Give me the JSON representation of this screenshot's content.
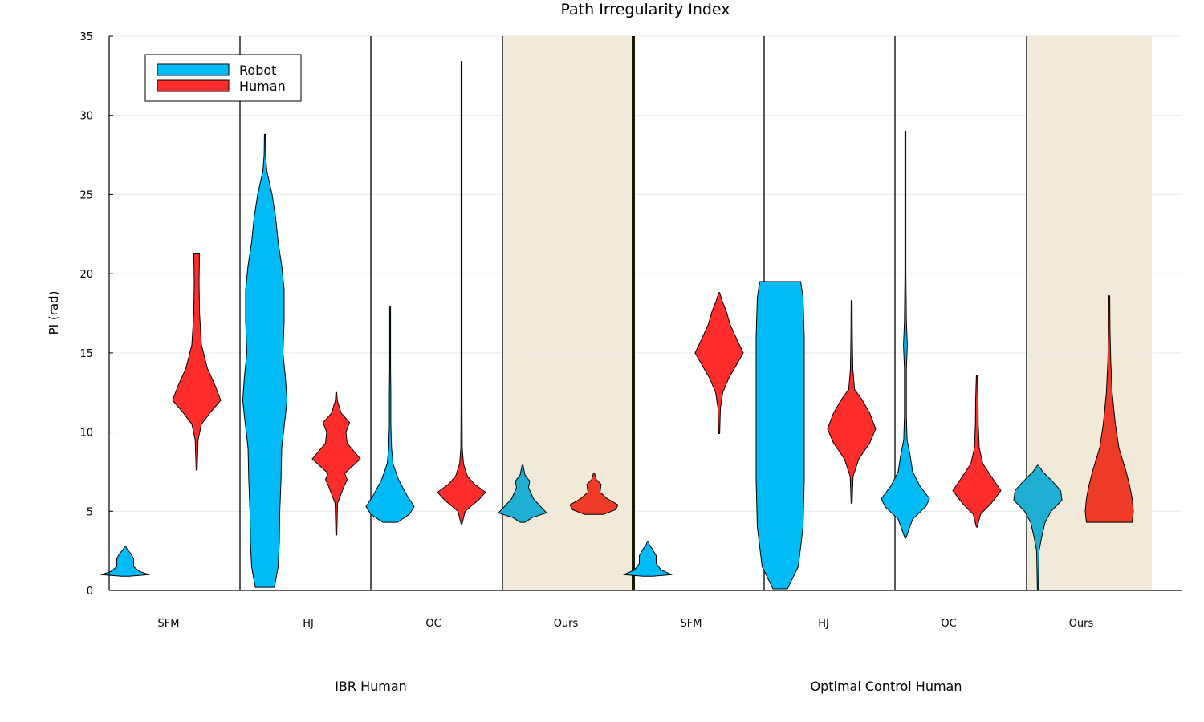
{
  "chart_data": {
    "type": "violin",
    "title": "Path Irregularity Index",
    "ylabel": "PI (rad)",
    "ylim": [
      0,
      35
    ],
    "yticks": [
      0,
      5,
      10,
      15,
      20,
      25,
      30,
      35
    ],
    "grid": true,
    "legend_position": "top-left",
    "categories": [
      "SFM",
      "HJ",
      "OC",
      "Ours",
      "SFM",
      "HJ",
      "OC",
      "Ours"
    ],
    "groups": [
      {
        "label": "IBR Human",
        "categories": [
          "SFM",
          "HJ",
          "OC",
          "Ours"
        ]
      },
      {
        "label": "Optimal Control Human",
        "categories": [
          "SFM",
          "HJ",
          "OC",
          "Ours"
        ]
      }
    ],
    "highlighted_categories": [
      3,
      7
    ],
    "series": [
      {
        "name": "Robot",
        "color": "#00bbf6",
        "highlight_color": "#1eafd2"
      },
      {
        "name": "Human",
        "color": "#ff2c2c",
        "highlight_color": "#ee3b28"
      }
    ],
    "violins": [
      {
        "category": 0,
        "series": "Robot",
        "min": 0.9,
        "max": 2.8,
        "profile": [
          [
            0.9,
            0.15
          ],
          [
            1.0,
            1.0
          ],
          [
            1.2,
            0.6
          ],
          [
            1.5,
            0.35
          ],
          [
            2.0,
            0.35
          ],
          [
            2.3,
            0.25
          ],
          [
            2.6,
            0.08
          ],
          [
            2.8,
            0.02
          ]
        ]
      },
      {
        "category": 0,
        "series": "Human",
        "min": 7.6,
        "max": 21.3,
        "profile": [
          [
            7.6,
            0.01
          ],
          [
            9.5,
            0.06
          ],
          [
            10.5,
            0.2
          ],
          [
            11.3,
            0.6
          ],
          [
            12.0,
            1.0
          ],
          [
            13.0,
            0.75
          ],
          [
            14.0,
            0.45
          ],
          [
            15.5,
            0.2
          ],
          [
            17.5,
            0.12
          ],
          [
            19.5,
            0.1
          ],
          [
            21.3,
            0.12
          ]
        ]
      },
      {
        "category": 1,
        "series": "Robot",
        "min": 0.2,
        "max": 28.8,
        "profile": [
          [
            0.2,
            0.4
          ],
          [
            1.5,
            0.55
          ],
          [
            3,
            0.6
          ],
          [
            5,
            0.62
          ],
          [
            7,
            0.67
          ],
          [
            9,
            0.7
          ],
          [
            11,
            0.85
          ],
          [
            12,
            0.92
          ],
          [
            13.5,
            0.85
          ],
          [
            15,
            0.75
          ],
          [
            17,
            0.8
          ],
          [
            19,
            0.8
          ],
          [
            20.5,
            0.7
          ],
          [
            22,
            0.55
          ],
          [
            23.5,
            0.45
          ],
          [
            25,
            0.3
          ],
          [
            26.5,
            0.08
          ],
          [
            27.5,
            0.03
          ],
          [
            28.8,
            0.01
          ]
        ]
      },
      {
        "category": 1,
        "series": "Human",
        "min": 3.5,
        "max": 12.5,
        "profile": [
          [
            3.5,
            0.01
          ],
          [
            5.5,
            0.05
          ],
          [
            6.5,
            0.3
          ],
          [
            7.0,
            0.45
          ],
          [
            7.4,
            0.35
          ],
          [
            8.3,
            1.0
          ],
          [
            9.3,
            0.45
          ],
          [
            10.0,
            0.4
          ],
          [
            10.6,
            0.55
          ],
          [
            11.2,
            0.2
          ],
          [
            12.0,
            0.04
          ],
          [
            12.5,
            0.02
          ]
        ]
      },
      {
        "category": 2,
        "series": "Robot",
        "min": 4.3,
        "max": 17.9,
        "profile": [
          [
            4.3,
            0.3
          ],
          [
            4.8,
            0.8
          ],
          [
            5.3,
            1.0
          ],
          [
            6.0,
            0.7
          ],
          [
            7.0,
            0.35
          ],
          [
            8.0,
            0.12
          ],
          [
            9.0,
            0.06
          ],
          [
            10.5,
            0.03
          ],
          [
            12.5,
            0.03
          ],
          [
            14,
            0.015
          ],
          [
            17.9,
            0.01
          ]
        ]
      },
      {
        "category": 2,
        "series": "Human",
        "min": 4.2,
        "max": 33.4,
        "profile": [
          [
            4.2,
            0.02
          ],
          [
            5.0,
            0.15
          ],
          [
            5.7,
            0.7
          ],
          [
            6.2,
            1.0
          ],
          [
            6.7,
            0.55
          ],
          [
            7.2,
            0.25
          ],
          [
            8.0,
            0.08
          ],
          [
            9.0,
            0.03
          ],
          [
            12,
            0.02
          ],
          [
            25,
            0.02
          ],
          [
            30,
            0.02
          ],
          [
            33.4,
            0.01
          ]
        ]
      },
      {
        "category": 3,
        "series": "Robot",
        "min": 4.3,
        "max": 7.9,
        "profile": [
          [
            4.3,
            0.1
          ],
          [
            4.6,
            0.4
          ],
          [
            4.9,
            1.0
          ],
          [
            5.3,
            0.75
          ],
          [
            5.8,
            0.45
          ],
          [
            6.5,
            0.25
          ],
          [
            6.9,
            0.3
          ],
          [
            7.3,
            0.1
          ],
          [
            7.9,
            0.02
          ]
        ]
      },
      {
        "category": 3,
        "series": "Human",
        "min": 4.8,
        "max": 7.4,
        "profile": [
          [
            4.8,
            0.4
          ],
          [
            5.1,
            0.9
          ],
          [
            5.4,
            1.0
          ],
          [
            5.8,
            0.55
          ],
          [
            6.2,
            0.25
          ],
          [
            6.7,
            0.3
          ],
          [
            7.0,
            0.1
          ],
          [
            7.4,
            0.02
          ]
        ]
      },
      {
        "category": 4,
        "series": "Robot",
        "min": 0.9,
        "max": 3.1,
        "profile": [
          [
            0.9,
            0.2
          ],
          [
            1.0,
            1.0
          ],
          [
            1.3,
            0.55
          ],
          [
            1.7,
            0.35
          ],
          [
            2.2,
            0.35
          ],
          [
            2.6,
            0.2
          ],
          [
            2.9,
            0.06
          ],
          [
            3.1,
            0.02
          ]
        ]
      },
      {
        "category": 4,
        "series": "Human",
        "min": 9.9,
        "max": 18.8,
        "profile": [
          [
            9.9,
            0.01
          ],
          [
            11.5,
            0.05
          ],
          [
            12.5,
            0.15
          ],
          [
            13.4,
            0.4
          ],
          [
            14.2,
            0.7
          ],
          [
            15.0,
            1.0
          ],
          [
            15.8,
            0.75
          ],
          [
            16.8,
            0.45
          ],
          [
            17.6,
            0.3
          ],
          [
            18.3,
            0.12
          ],
          [
            18.8,
            0.02
          ]
        ]
      },
      {
        "category": 5,
        "series": "Robot",
        "min": 0.1,
        "max": 19.5,
        "profile": [
          [
            0.1,
            0.3
          ],
          [
            1.5,
            0.75
          ],
          [
            4,
            0.95
          ],
          [
            7,
            1.0
          ],
          [
            10,
            1.0
          ],
          [
            13,
            1.0
          ],
          [
            16,
            1.0
          ],
          [
            18.5,
            0.95
          ],
          [
            19.5,
            0.85
          ]
        ]
      },
      {
        "category": 5,
        "series": "Human",
        "min": 5.5,
        "max": 18.3,
        "profile": [
          [
            5.5,
            0.01
          ],
          [
            7.2,
            0.06
          ],
          [
            8.3,
            0.3
          ],
          [
            9.3,
            0.75
          ],
          [
            10.2,
            1.0
          ],
          [
            11.2,
            0.75
          ],
          [
            12.0,
            0.45
          ],
          [
            12.7,
            0.12
          ],
          [
            14,
            0.05
          ],
          [
            16,
            0.03
          ],
          [
            18.3,
            0.01
          ]
        ]
      },
      {
        "category": 6,
        "series": "Robot",
        "min": 3.3,
        "max": 29.0,
        "profile": [
          [
            3.3,
            0.02
          ],
          [
            4.5,
            0.3
          ],
          [
            5.3,
            0.85
          ],
          [
            5.8,
            1.0
          ],
          [
            6.6,
            0.6
          ],
          [
            7.5,
            0.3
          ],
          [
            8.5,
            0.2
          ],
          [
            9.5,
            0.07
          ],
          [
            11,
            0.04
          ],
          [
            14,
            0.04
          ],
          [
            15.5,
            0.08
          ],
          [
            17,
            0.04
          ],
          [
            20,
            0.02
          ],
          [
            29,
            0.01
          ]
        ]
      },
      {
        "category": 6,
        "series": "Human",
        "min": 4.0,
        "max": 13.6,
        "profile": [
          [
            4.0,
            0.02
          ],
          [
            4.8,
            0.15
          ],
          [
            5.5,
            0.6
          ],
          [
            6.3,
            1.0
          ],
          [
            7.2,
            0.6
          ],
          [
            8.0,
            0.25
          ],
          [
            9.0,
            0.1
          ],
          [
            10.5,
            0.06
          ],
          [
            12,
            0.05
          ],
          [
            13.6,
            0.02
          ]
        ]
      },
      {
        "category": 7,
        "series": "Robot",
        "min": 0.0,
        "max": 7.9,
        "profile": [
          [
            0.0,
            0.01
          ],
          [
            2.5,
            0.05
          ],
          [
            3.3,
            0.15
          ],
          [
            4.3,
            0.3
          ],
          [
            5.0,
            0.55
          ],
          [
            5.7,
            1.0
          ],
          [
            6.3,
            0.95
          ],
          [
            6.9,
            0.6
          ],
          [
            7.5,
            0.2
          ],
          [
            7.9,
            0.02
          ]
        ]
      },
      {
        "category": 7,
        "series": "Human",
        "min": 4.3,
        "max": 18.6,
        "profile": [
          [
            4.3,
            0.95
          ],
          [
            5.0,
            1.0
          ],
          [
            5.8,
            0.95
          ],
          [
            6.6,
            0.85
          ],
          [
            7.5,
            0.7
          ],
          [
            9.0,
            0.4
          ],
          [
            10.5,
            0.25
          ],
          [
            12.5,
            0.12
          ],
          [
            14.5,
            0.06
          ],
          [
            16.5,
            0.03
          ],
          [
            18.6,
            0.01
          ]
        ]
      }
    ]
  }
}
